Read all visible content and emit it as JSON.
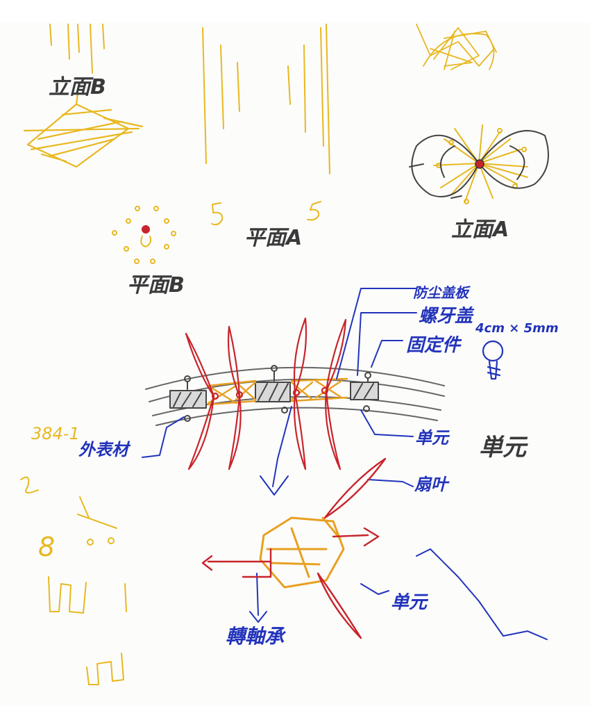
{
  "labels": {
    "elevation_b": "立面B",
    "plan_b": "平面B",
    "plan_a": "平面A",
    "elevation_a": "立面A",
    "dust_cover": "防尘盖板",
    "screw_cap": "螺牙盖",
    "screw_size": "4cm × 5mm",
    "fixture": "固定件",
    "outer_material": "外表材",
    "unit_1": "单元",
    "unit_2": "単元",
    "leaf_shape": "扇叶",
    "unit_3": "单元",
    "rotating_bearing": "轉軸承",
    "gold_scribble_1": "384-1",
    "gold_num_5a": "5",
    "gold_num_5b": "5",
    "gold_num_8": "8"
  },
  "colors": {
    "ink_black": "#3a3a3a",
    "ink_blue": "#2233bb",
    "ink_gold": "#e8b820",
    "ink_red": "#c8242b",
    "ink_gray": "#666666"
  }
}
